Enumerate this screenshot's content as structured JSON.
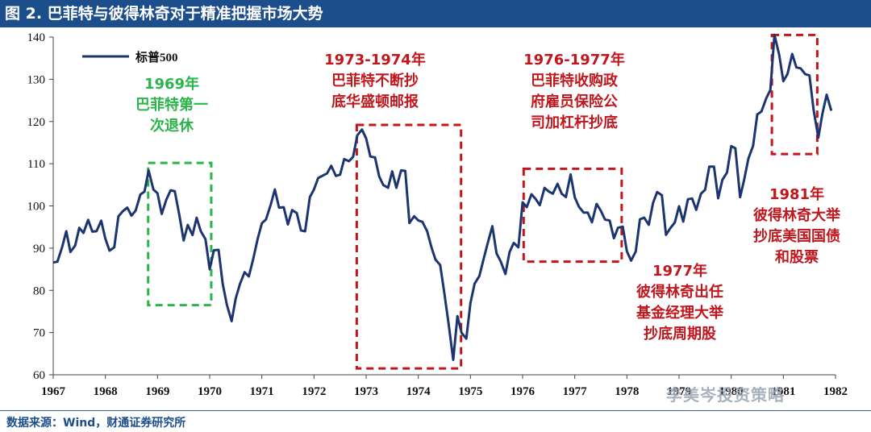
{
  "title": "图 2. 巴菲特与彼得林奇对于精准把握市场大势",
  "source": "数据来源：Wind，财通证券研究所",
  "watermark": "李美岑投资策略",
  "colors": {
    "title_bg": "#1c4e8c",
    "line": "#1c3570",
    "red": "#c0161c",
    "green": "#2bb44a"
  },
  "chart_data": {
    "type": "line",
    "title": "",
    "xlabel": "",
    "ylabel": "",
    "ylim": [
      60,
      140
    ],
    "yticks": [
      60,
      70,
      80,
      90,
      100,
      110,
      120,
      130,
      140
    ],
    "xlim": [
      1967,
      1982
    ],
    "xticks": [
      "1967",
      "1968",
      "1969",
      "1970",
      "1971",
      "1972",
      "1973",
      "1974",
      "1975",
      "1976",
      "1977",
      "1978",
      "1979",
      "1980",
      "1981",
      "1982"
    ],
    "series": [
      {
        "name": "标普500",
        "points": [
          [
            1967.0,
            86.6
          ],
          [
            1967.08,
            86.8
          ],
          [
            1967.17,
            90.2
          ],
          [
            1967.25,
            94.0
          ],
          [
            1967.33,
            89.1
          ],
          [
            1967.42,
            90.6
          ],
          [
            1967.5,
            94.8
          ],
          [
            1967.58,
            93.6
          ],
          [
            1967.67,
            96.7
          ],
          [
            1967.75,
            93.9
          ],
          [
            1967.83,
            94.0
          ],
          [
            1967.92,
            96.5
          ],
          [
            1968.0,
            92.2
          ],
          [
            1968.08,
            89.4
          ],
          [
            1968.17,
            90.2
          ],
          [
            1968.25,
            97.5
          ],
          [
            1968.33,
            98.7
          ],
          [
            1968.42,
            99.6
          ],
          [
            1968.5,
            97.7
          ],
          [
            1968.58,
            98.9
          ],
          [
            1968.67,
            102.7
          ],
          [
            1968.75,
            103.4
          ],
          [
            1968.83,
            108.4
          ],
          [
            1968.92,
            103.9
          ],
          [
            1969.0,
            103.0
          ],
          [
            1969.08,
            98.1
          ],
          [
            1969.17,
            101.5
          ],
          [
            1969.25,
            103.7
          ],
          [
            1969.33,
            103.5
          ],
          [
            1969.42,
            97.7
          ],
          [
            1969.5,
            91.8
          ],
          [
            1969.58,
            95.5
          ],
          [
            1969.67,
            93.1
          ],
          [
            1969.75,
            97.2
          ],
          [
            1969.83,
            94.0
          ],
          [
            1969.92,
            92.1
          ],
          [
            1970.0,
            85.0
          ],
          [
            1970.08,
            89.5
          ],
          [
            1970.17,
            89.6
          ],
          [
            1970.25,
            81.5
          ],
          [
            1970.33,
            76.6
          ],
          [
            1970.42,
            72.7
          ],
          [
            1970.5,
            78.1
          ],
          [
            1970.58,
            81.5
          ],
          [
            1970.67,
            84.3
          ],
          [
            1970.75,
            83.3
          ],
          [
            1970.83,
            87.2
          ],
          [
            1970.92,
            92.2
          ],
          [
            1971.0,
            95.9
          ],
          [
            1971.08,
            96.8
          ],
          [
            1971.17,
            100.3
          ],
          [
            1971.25,
            103.9
          ],
          [
            1971.33,
            99.6
          ],
          [
            1971.42,
            99.7
          ],
          [
            1971.5,
            95.6
          ],
          [
            1971.58,
            99.0
          ],
          [
            1971.67,
            98.3
          ],
          [
            1971.75,
            94.2
          ],
          [
            1971.83,
            93.99
          ],
          [
            1971.92,
            102.1
          ],
          [
            1972.0,
            103.9
          ],
          [
            1972.08,
            106.6
          ],
          [
            1972.17,
            107.2
          ],
          [
            1972.25,
            107.7
          ],
          [
            1972.33,
            109.5
          ],
          [
            1972.42,
            107.1
          ],
          [
            1972.5,
            107.4
          ],
          [
            1972.58,
            111.1
          ],
          [
            1972.67,
            110.6
          ],
          [
            1972.75,
            111.6
          ],
          [
            1972.83,
            116.7
          ],
          [
            1972.92,
            118.1
          ],
          [
            1973.0,
            116.0
          ],
          [
            1973.08,
            111.7
          ],
          [
            1973.17,
            111.5
          ],
          [
            1973.25,
            106.97
          ],
          [
            1973.33,
            104.95
          ],
          [
            1973.42,
            104.3
          ],
          [
            1973.5,
            108.2
          ],
          [
            1973.58,
            104.3
          ],
          [
            1973.67,
            108.4
          ],
          [
            1973.75,
            108.3
          ],
          [
            1973.83,
            95.96
          ],
          [
            1973.92,
            97.55
          ],
          [
            1974.0,
            96.57
          ],
          [
            1974.08,
            96.22
          ],
          [
            1974.17,
            93.98
          ],
          [
            1974.25,
            90.31
          ],
          [
            1974.33,
            87.28
          ],
          [
            1974.42,
            86.0
          ],
          [
            1974.5,
            79.31
          ],
          [
            1974.58,
            72.15
          ],
          [
            1974.67,
            63.54
          ],
          [
            1974.75,
            73.9
          ],
          [
            1974.83,
            69.97
          ],
          [
            1974.92,
            68.56
          ],
          [
            1975.0,
            76.98
          ],
          [
            1975.08,
            81.59
          ],
          [
            1975.17,
            83.36
          ],
          [
            1975.25,
            87.3
          ],
          [
            1975.33,
            91.15
          ],
          [
            1975.42,
            95.19
          ],
          [
            1975.5,
            88.75
          ],
          [
            1975.58,
            86.88
          ],
          [
            1975.67,
            83.87
          ],
          [
            1975.75,
            89.04
          ],
          [
            1975.83,
            91.24
          ],
          [
            1975.92,
            90.19
          ],
          [
            1976.0,
            100.86
          ],
          [
            1976.08,
            99.71
          ],
          [
            1976.17,
            102.77
          ],
          [
            1976.25,
            101.64
          ],
          [
            1976.33,
            100.18
          ],
          [
            1976.42,
            104.28
          ],
          [
            1976.5,
            103.44
          ],
          [
            1976.58,
            102.91
          ],
          [
            1976.67,
            105.24
          ],
          [
            1976.75,
            102.9
          ],
          [
            1976.83,
            102.1
          ],
          [
            1976.92,
            107.46
          ],
          [
            1977.0,
            102.03
          ],
          [
            1977.08,
            99.82
          ],
          [
            1977.17,
            98.42
          ],
          [
            1977.25,
            98.44
          ],
          [
            1977.33,
            96.12
          ],
          [
            1977.42,
            100.48
          ],
          [
            1977.5,
            98.85
          ],
          [
            1977.58,
            96.77
          ],
          [
            1977.67,
            96.53
          ],
          [
            1977.75,
            92.34
          ],
          [
            1977.83,
            94.83
          ],
          [
            1977.92,
            95.1
          ],
          [
            1978.0,
            89.25
          ],
          [
            1978.08,
            87.04
          ],
          [
            1978.17,
            89.21
          ],
          [
            1978.25,
            96.83
          ],
          [
            1978.33,
            97.24
          ],
          [
            1978.42,
            95.53
          ],
          [
            1978.5,
            100.68
          ],
          [
            1978.58,
            103.29
          ],
          [
            1978.67,
            102.54
          ],
          [
            1978.75,
            93.15
          ],
          [
            1978.83,
            94.7
          ],
          [
            1978.92,
            96.11
          ],
          [
            1979.0,
            99.93
          ],
          [
            1979.08,
            96.28
          ],
          [
            1979.17,
            101.59
          ],
          [
            1979.25,
            101.76
          ],
          [
            1979.33,
            99.08
          ],
          [
            1979.42,
            102.91
          ],
          [
            1979.5,
            103.81
          ],
          [
            1979.58,
            109.32
          ],
          [
            1979.67,
            109.32
          ],
          [
            1979.75,
            101.82
          ],
          [
            1979.83,
            106.16
          ],
          [
            1979.92,
            107.94
          ],
          [
            1980.0,
            114.16
          ],
          [
            1980.08,
            113.66
          ],
          [
            1980.17,
            102.09
          ],
          [
            1980.25,
            106.29
          ],
          [
            1980.33,
            111.24
          ],
          [
            1980.42,
            114.24
          ],
          [
            1980.5,
            121.67
          ],
          [
            1980.58,
            122.38
          ],
          [
            1980.67,
            125.46
          ],
          [
            1980.75,
            127.47
          ],
          [
            1980.83,
            140.52
          ],
          [
            1980.92,
            135.76
          ],
          [
            1981.0,
            129.55
          ],
          [
            1981.08,
            131.27
          ],
          [
            1981.17,
            136.0
          ],
          [
            1981.25,
            132.81
          ],
          [
            1981.33,
            132.59
          ],
          [
            1981.42,
            131.21
          ],
          [
            1981.5,
            130.92
          ],
          [
            1981.58,
            122.79
          ],
          [
            1981.67,
            116.18
          ],
          [
            1981.75,
            121.89
          ],
          [
            1981.83,
            126.35
          ],
          [
            1981.92,
            122.55
          ]
        ]
      }
    ],
    "legend": {
      "label": "标普500",
      "position": "top-left"
    },
    "annotations": [
      {
        "id": "ann-1969",
        "color": "green",
        "lines": [
          "1969年",
          "巴菲特第一",
          "次退休"
        ],
        "box_x": [
          1968.82,
          1970.03
        ],
        "box_y": [
          76.5,
          110.2
        ]
      },
      {
        "id": "ann-1973",
        "color": "red",
        "lines": [
          "1973-1974年",
          "巴菲特不断抄",
          "底华盛顿邮报"
        ],
        "box_x": [
          1972.82,
          1974.82
        ],
        "box_y": [
          61.5,
          119.2
        ]
      },
      {
        "id": "ann-1976",
        "color": "red",
        "lines": [
          "1976-1977年",
          "巴菲特收购政",
          "府雇员保险公",
          "司加杠杆抄底"
        ],
        "box_x": [
          1976.02,
          1977.9
        ],
        "box_y": [
          86.8,
          108.8
        ]
      },
      {
        "id": "ann-1977",
        "color": "red",
        "lines": [
          "1977年",
          "彼得林奇出任",
          "基金经理大举",
          "抄底周期股"
        ],
        "box_x": null,
        "box_y": null
      },
      {
        "id": "ann-1981",
        "color": "red",
        "lines": [
          "1981年",
          "彼得林奇大举",
          "抄底美国国债",
          "和股票"
        ],
        "box_x": [
          1980.78,
          1981.65
        ],
        "box_y": [
          112.3,
          140.5
        ]
      }
    ]
  }
}
